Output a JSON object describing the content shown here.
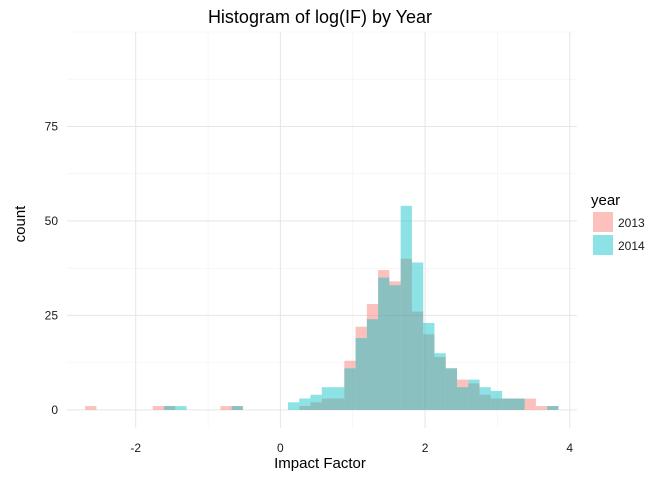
{
  "chart_data": {
    "type": "histogram",
    "title": "Histogram of log(IF) by Year",
    "xlabel": "Impact Factor",
    "ylabel": "count",
    "xlim": [
      -2.95,
      4.1
    ],
    "ylim": [
      -4.8,
      100
    ],
    "xticks": [
      -2,
      0,
      2,
      4
    ],
    "xtick_labels": [
      "-2",
      "0",
      "2",
      "4"
    ],
    "yticks": [
      0,
      25,
      50,
      75
    ],
    "ytick_labels": [
      "0",
      "25",
      "50",
      "75"
    ],
    "grid": true,
    "legend": {
      "title": "year",
      "placement": "right"
    },
    "bins": {
      "start": -2.7,
      "width": 0.1558,
      "count": 42
    },
    "series": [
      {
        "name": "2013",
        "color": "#F8766D",
        "values": [
          1,
          0,
          0,
          0,
          0,
          0,
          1,
          1,
          0,
          0,
          0,
          0,
          1,
          1,
          0,
          0,
          0,
          0,
          0,
          1,
          2,
          3,
          3,
          13,
          22,
          28,
          37,
          34,
          40,
          26,
          20,
          14,
          11,
          8,
          7,
          4,
          3,
          3,
          3,
          3,
          1,
          1
        ]
      },
      {
        "name": "2014",
        "color": "#00BFC4",
        "values": [
          0,
          0,
          0,
          0,
          0,
          0,
          0,
          1,
          1,
          0,
          0,
          0,
          0,
          1,
          0,
          0,
          0,
          0,
          2,
          3,
          4,
          6,
          6,
          11,
          19,
          24,
          35,
          33,
          54,
          39,
          23,
          15,
          11,
          6,
          8,
          6,
          5,
          3,
          3,
          0,
          0,
          1
        ]
      }
    ]
  }
}
